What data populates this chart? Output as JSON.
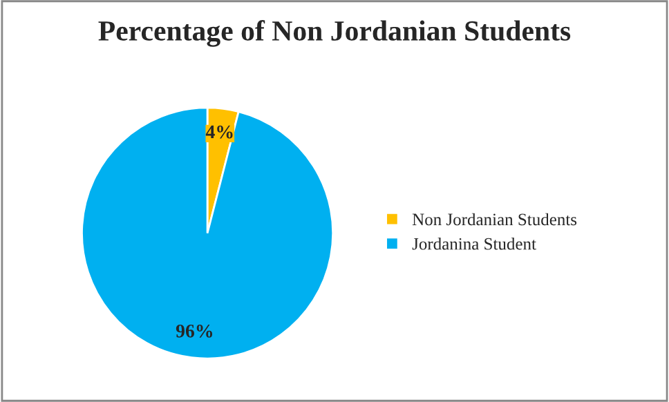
{
  "chart_data": {
    "type": "pie",
    "title": "Percentage of Non Jordanian Students",
    "categories": [
      "Non Jordanian Students",
      "Jordanina Student"
    ],
    "values": [
      4,
      96
    ],
    "colors": [
      "#ffc000",
      "#00b0f0"
    ],
    "value_labels": [
      "4%",
      "96%"
    ],
    "legend": "right"
  }
}
